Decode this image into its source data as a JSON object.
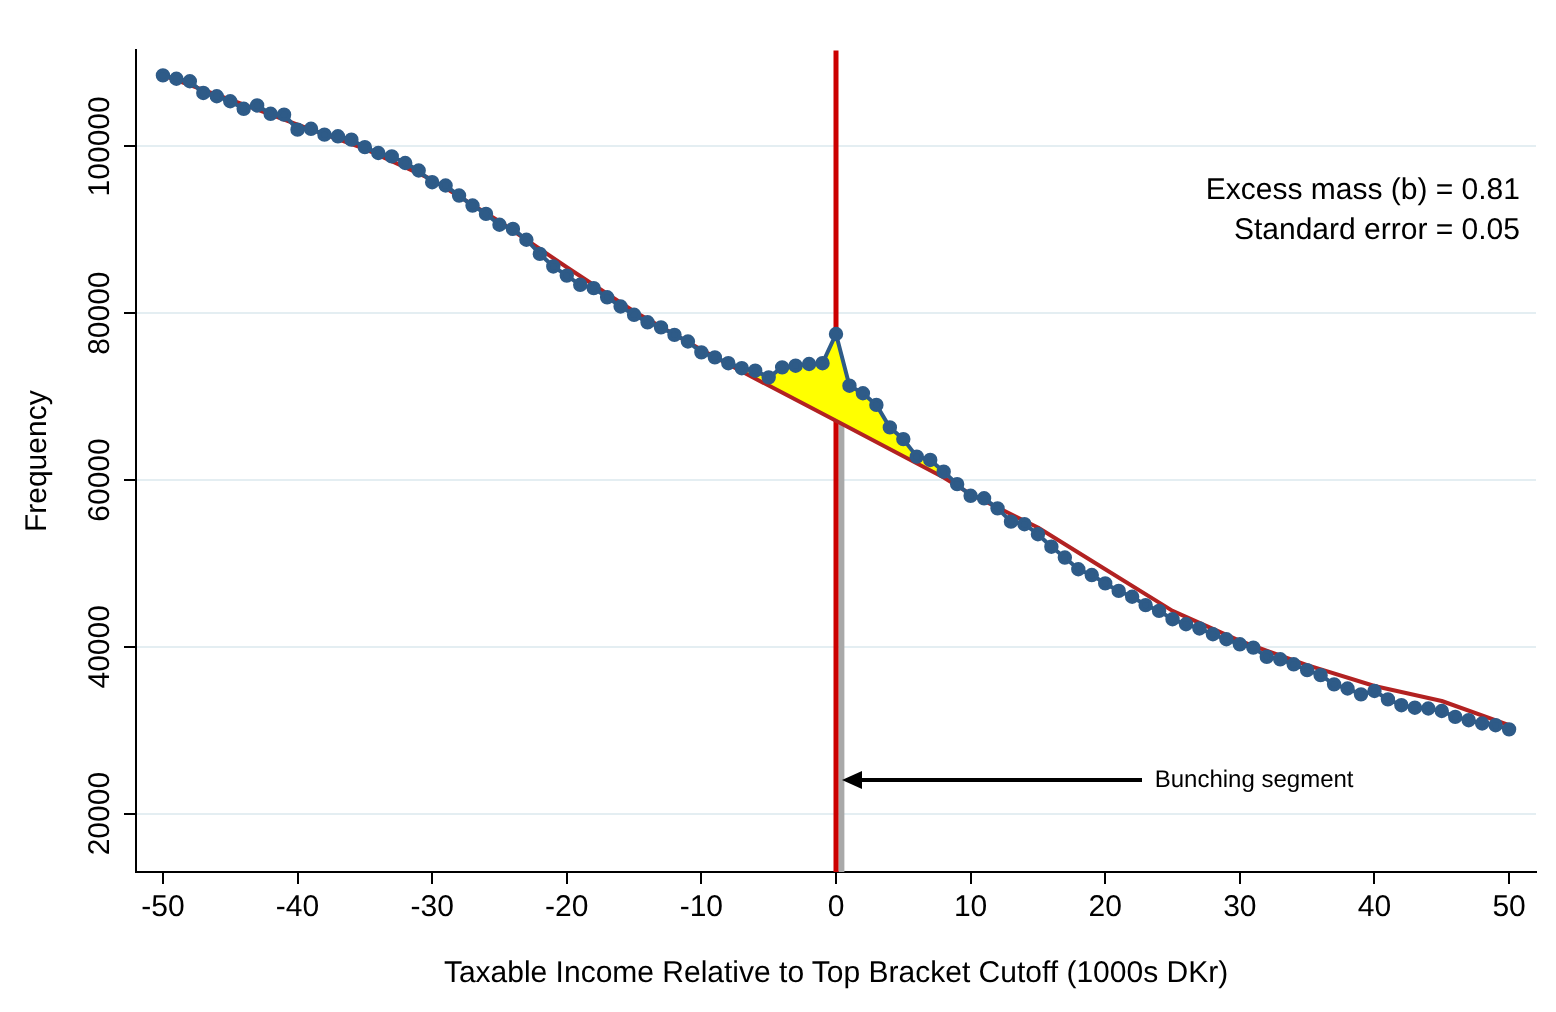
{
  "chart_data": {
    "type": "line",
    "xlabel": "Taxable Income Relative to Top Bracket Cutoff (1000s DKr)",
    "ylabel": "Frequency",
    "xlim": [
      -52,
      52
    ],
    "xticks": [
      -50,
      -40,
      -30,
      -20,
      -10,
      0,
      10,
      20,
      30,
      40,
      50
    ],
    "ylim": [
      13000,
      111500
    ],
    "yticks": [
      20000,
      40000,
      60000,
      80000,
      100000
    ],
    "grid": "y",
    "legend": false,
    "line_style": "solid",
    "series": [
      {
        "marker": "circle",
        "color": "#2e5b88",
        "x": [
          -50,
          -49,
          -48,
          -47,
          -46,
          -45,
          -44,
          -43,
          -42,
          -41,
          -40,
          -39,
          -38,
          -37,
          -36,
          -35,
          -34,
          -33,
          -32,
          -31,
          -30,
          -29,
          -28,
          -27,
          -26,
          -25,
          -24,
          -23,
          -22,
          -21,
          -20,
          -19,
          -18,
          -17,
          -16,
          -15,
          -14,
          -13,
          -12,
          -11,
          -10,
          -9,
          -8,
          -7,
          -6,
          -5,
          -4,
          -3,
          -2,
          -1,
          0,
          1,
          2,
          3,
          4,
          5,
          6,
          7,
          8,
          9,
          10,
          11,
          12,
          13,
          14,
          15,
          16,
          17,
          18,
          19,
          20,
          21,
          22,
          23,
          24,
          25,
          26,
          27,
          28,
          29,
          30,
          31,
          32,
          33,
          34,
          35,
          36,
          37,
          38,
          39,
          40,
          41,
          42,
          43,
          44,
          45,
          46,
          47,
          48,
          49,
          50
        ],
        "values": [
          108500,
          108100,
          107800,
          106400,
          106000,
          105400,
          104500,
          104900,
          103900,
          103800,
          102000,
          102100,
          101400,
          101200,
          100800,
          99900,
          99200,
          98800,
          98000,
          97100,
          95700,
          95300,
          94100,
          92900,
          91900,
          90600,
          90100,
          88800,
          87100,
          85600,
          84500,
          83400,
          83000,
          81900,
          80800,
          79800,
          78900,
          78300,
          77400,
          76600,
          75300,
          74700,
          74000,
          73400,
          73100,
          72300,
          73500,
          73700,
          73900,
          74000,
          77500,
          71300,
          70400,
          69000,
          66300,
          64900,
          62800,
          62400,
          61000,
          59500,
          58100,
          57800,
          56600,
          55000,
          54700,
          53500,
          52000,
          50700,
          49300,
          48600,
          47600,
          46700,
          46000,
          45000,
          44300,
          43300,
          42700,
          42200,
          41500,
          40900,
          40300,
          39900,
          38800,
          38500,
          37900,
          37200,
          36600,
          35500,
          35000,
          34300,
          34700,
          33700,
          33000,
          32700,
          32600,
          32300,
          31600,
          31200,
          30800,
          30600,
          30100
        ]
      },
      {
        "marker": "none",
        "color": "#b22222",
        "x": [
          -50,
          -45,
          -40,
          -35,
          -30,
          -25,
          -20,
          -15,
          -10,
          -7,
          0,
          8,
          10,
          15,
          20,
          25,
          30,
          35,
          40,
          45,
          50
        ],
        "values": [
          108500,
          105600,
          102600,
          99700,
          96000,
          91000,
          85500,
          80200,
          75600,
          73000,
          67100,
          60300,
          58300,
          54300,
          49300,
          44300,
          40700,
          37800,
          35300,
          33500,
          30600
        ]
      },
      {
        "type": "area",
        "marker": "none",
        "color": "#ffff00",
        "x": [
          -7,
          -6,
          -5,
          -4,
          -3,
          -2,
          -1,
          0,
          1,
          2,
          3,
          4,
          5,
          6,
          7,
          8
        ],
        "values": [
          73400,
          73100,
          72300,
          73500,
          73700,
          73900,
          74000,
          77500,
          71300,
          70400,
          69000,
          66300,
          64900,
          62800,
          62400,
          61000
        ]
      }
    ],
    "ref_lines": [
      {
        "axis": "x",
        "value": 0.4,
        "color": "#a9a9a9"
      },
      {
        "axis": "x",
        "value": 0,
        "color": "#cc0000"
      }
    ],
    "annotations": [
      "Excess mass (b) = 0.81",
      "Standard error = 0.05",
      {
        "text": "Bunching segment",
        "x": 0.5,
        "y": 24000
      }
    ]
  }
}
